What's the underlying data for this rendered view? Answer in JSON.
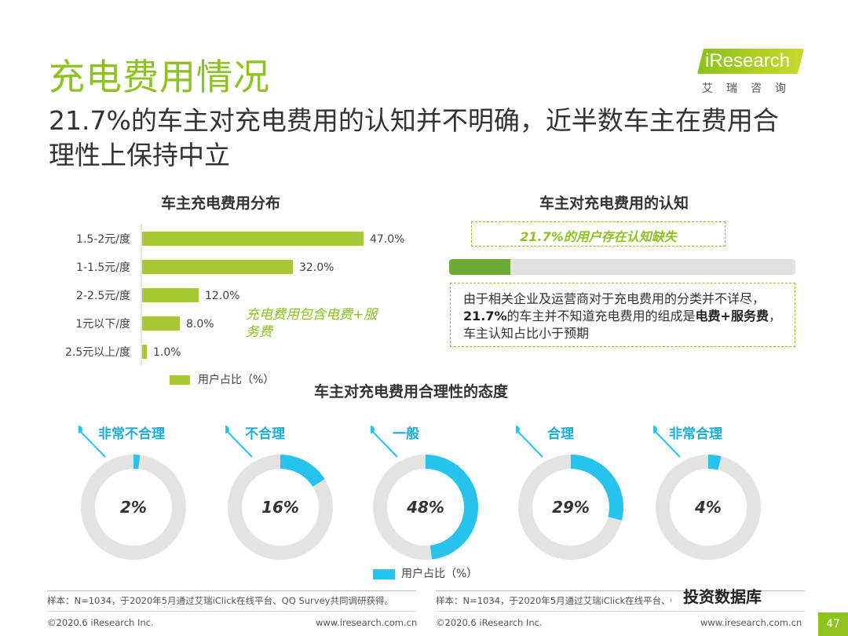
{
  "page": {
    "title": "充电费用情况",
    "subtitle": "21.7%的车主对充电费用的认知并不明确，近半数车主在费用合理性上保持中立",
    "logo": {
      "brand": "iResearch",
      "cn": "艾瑞咨询"
    },
    "page_number": "47",
    "watermark": "投资数据库"
  },
  "bar_section": {
    "title": "车主充电费用分布",
    "note": "充电费用包含电费+服务费",
    "legend": "用户占比（%）",
    "color": "#a6c832"
  },
  "awareness": {
    "title": "车主对充电费用的认知",
    "highlight": "21.7%的用户存在认知缺失",
    "value": 21.7,
    "text_a": "由于相关企业及运营商对于充电费用的分类并不详尽，",
    "text_b": "21.7%",
    "text_c": "的车主并不知道充电费用的组成是",
    "text_d": "电费+服务费",
    "text_e": "，车主认知占比小于预期"
  },
  "attitude_section": {
    "title": "车主对充电费用合理性的态度",
    "legend": "用户占比（%）",
    "color": "#26c3ec",
    "track_color": "#e3e3e3"
  },
  "chart_data": [
    {
      "type": "bar",
      "orientation": "horizontal",
      "title": "车主充电费用分布",
      "categories": [
        "1.5-2元/度",
        "1-1.5元/度",
        "2-2.5元/度",
        "1元以下/度",
        "2.5元以上/度"
      ],
      "values": [
        47.0,
        32.0,
        12.0,
        8.0,
        1.0
      ],
      "value_labels": [
        "47.0%",
        "32.0%",
        "12.0%",
        "8.0%",
        "1.0%"
      ],
      "legend": "用户占比（%）",
      "xlim": [
        0,
        50
      ]
    },
    {
      "type": "pie",
      "subtype": "donut",
      "title": "车主对充电费用合理性的态度",
      "categories": [
        "非常不合理",
        "不合理",
        "一般",
        "合理",
        "非常合理"
      ],
      "values": [
        2,
        16,
        48,
        29,
        4
      ],
      "value_labels": [
        "2%",
        "16%",
        "48%",
        "29%",
        "4%"
      ],
      "legend": "用户占比（%）"
    }
  ],
  "footer": {
    "sample_left": "样本：N=1034，于2020年5月通过艾瑞iClick在线平台、QQ Survey共同调研获得。",
    "sample_right": "样本：N=1034，于2020年5月通过艾瑞iClick在线平台、Q",
    "copyright_left": "©2020.6 iResearch Inc.",
    "url_left": "www.iresearch.com.cn",
    "copyright_right": "©2020.6 iResearch Inc.",
    "url_right": "www.iresearch.com.cn"
  }
}
